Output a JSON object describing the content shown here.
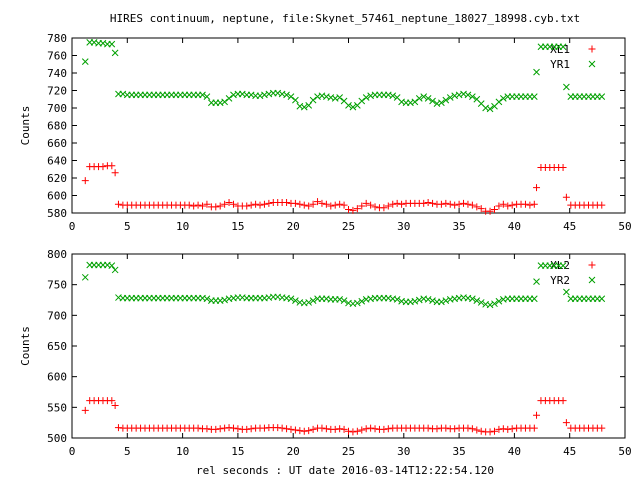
{
  "title": "HIRES continuum, neptune, file:Skynet_57461_neptune_18027_18998.cyb.txt",
  "xlabel": "rel seconds : UT date 2016-03-14T12:22:54.120",
  "colors": {
    "red": "#ff0000",
    "green": "#00a000"
  },
  "chart_data": [
    {
      "type": "scatter",
      "ylabel": "Counts",
      "xlim": [
        0,
        50
      ],
      "ylim": [
        580,
        780
      ],
      "xticks": [
        0,
        5,
        10,
        15,
        20,
        25,
        30,
        35,
        40,
        45,
        50
      ],
      "yticks": [
        580,
        600,
        620,
        640,
        660,
        680,
        700,
        720,
        740,
        760,
        780
      ],
      "legend_position": "top-right",
      "series": [
        {
          "name": "XL1",
          "marker": "plus",
          "color": "#ff0000",
          "x": [
            1.2,
            1.6,
            2.0,
            2.4,
            2.8,
            3.2,
            3.6,
            3.9,
            4.2,
            4.6,
            5.0,
            5.4,
            5.8,
            6.2,
            6.6,
            7.0,
            7.4,
            7.8,
            8.2,
            8.6,
            9.0,
            9.4,
            9.8,
            10.2,
            10.6,
            11.0,
            11.4,
            11.8,
            12.2,
            12.6,
            13.0,
            13.4,
            13.8,
            14.2,
            14.6,
            15.0,
            15.4,
            15.8,
            16.2,
            16.6,
            17.0,
            17.4,
            17.8,
            18.2,
            18.6,
            19.0,
            19.4,
            19.8,
            20.2,
            20.6,
            21.0,
            21.4,
            21.8,
            22.2,
            22.6,
            23.0,
            23.4,
            23.8,
            24.2,
            24.6,
            25.0,
            25.4,
            25.8,
            26.2,
            26.6,
            27.0,
            27.4,
            27.8,
            28.2,
            28.6,
            29.0,
            29.4,
            29.8,
            30.2,
            30.6,
            31.0,
            31.4,
            31.8,
            32.2,
            32.6,
            33.0,
            33.4,
            33.8,
            34.2,
            34.6,
            35.0,
            35.4,
            35.8,
            36.2,
            36.6,
            37.0,
            37.4,
            37.8,
            38.2,
            38.6,
            39.0,
            39.4,
            39.8,
            40.2,
            40.6,
            41.0,
            41.4,
            41.8,
            42.0,
            42.4,
            42.8,
            43.2,
            43.6,
            44.0,
            44.4,
            44.7,
            45.1,
            45.5,
            45.9,
            46.3,
            46.7,
            47.1,
            47.5,
            47.9
          ],
          "y": [
            617,
            633,
            633,
            633,
            633,
            634,
            634,
            626,
            590,
            589,
            589,
            589,
            589,
            589,
            589,
            589,
            589,
            589,
            589,
            589,
            589,
            589,
            589,
            589,
            589,
            588,
            589,
            588,
            590,
            587,
            587,
            588,
            590,
            592,
            590,
            588,
            588,
            588,
            589,
            590,
            589,
            590,
            591,
            592,
            592,
            592,
            592,
            591,
            591,
            590,
            589,
            588,
            590,
            593,
            591,
            590,
            588,
            589,
            590,
            589,
            584,
            583,
            585,
            588,
            591,
            589,
            587,
            586,
            586,
            588,
            590,
            591,
            590,
            591,
            591,
            591,
            591,
            591,
            592,
            591,
            590,
            590,
            591,
            590,
            589,
            590,
            591,
            590,
            589,
            587,
            585,
            582,
            582,
            584,
            588,
            590,
            588,
            589,
            590,
            590,
            590,
            589,
            590,
            609,
            632,
            632,
            632,
            632,
            632,
            632,
            598,
            589,
            589,
            589,
            589,
            589,
            589,
            589,
            589
          ]
        },
        {
          "name": "YR1",
          "marker": "cross",
          "color": "#00a000",
          "x": [
            1.2,
            1.6,
            2.0,
            2.4,
            2.8,
            3.2,
            3.6,
            3.9,
            4.2,
            4.6,
            5.0,
            5.4,
            5.8,
            6.2,
            6.6,
            7.0,
            7.4,
            7.8,
            8.2,
            8.6,
            9.0,
            9.4,
            9.8,
            10.2,
            10.6,
            11.0,
            11.4,
            11.8,
            12.2,
            12.6,
            13.0,
            13.4,
            13.8,
            14.2,
            14.6,
            15.0,
            15.4,
            15.8,
            16.2,
            16.6,
            17.0,
            17.4,
            17.8,
            18.2,
            18.6,
            19.0,
            19.4,
            19.8,
            20.2,
            20.6,
            21.0,
            21.4,
            21.8,
            22.2,
            22.6,
            23.0,
            23.4,
            23.8,
            24.2,
            24.6,
            25.0,
            25.4,
            25.8,
            26.2,
            26.6,
            27.0,
            27.4,
            27.8,
            28.2,
            28.6,
            29.0,
            29.4,
            29.8,
            30.2,
            30.6,
            31.0,
            31.4,
            31.8,
            32.2,
            32.6,
            33.0,
            33.4,
            33.8,
            34.2,
            34.6,
            35.0,
            35.4,
            35.8,
            36.2,
            36.6,
            37.0,
            37.4,
            37.8,
            38.2,
            38.6,
            39.0,
            39.4,
            39.8,
            40.2,
            40.6,
            41.0,
            41.4,
            41.8,
            42.0,
            42.4,
            42.8,
            43.2,
            43.6,
            44.0,
            44.4,
            44.7,
            45.1,
            45.5,
            45.9,
            46.3,
            46.7,
            47.1,
            47.5,
            47.9
          ],
          "y": [
            753,
            775,
            775,
            774,
            774,
            773,
            773,
            763,
            716,
            716,
            715,
            715,
            715,
            715,
            715,
            715,
            715,
            715,
            715,
            715,
            715,
            715,
            715,
            715,
            715,
            715,
            715,
            715,
            713,
            706,
            706,
            706,
            707,
            711,
            715,
            716,
            716,
            715,
            715,
            714,
            714,
            715,
            716,
            717,
            717,
            716,
            715,
            713,
            709,
            702,
            701,
            703,
            709,
            713,
            714,
            713,
            712,
            711,
            712,
            708,
            703,
            701,
            703,
            708,
            712,
            714,
            715,
            715,
            715,
            715,
            714,
            712,
            707,
            706,
            706,
            707,
            711,
            713,
            711,
            708,
            705,
            706,
            709,
            712,
            714,
            715,
            716,
            715,
            713,
            710,
            705,
            700,
            699,
            702,
            707,
            711,
            713,
            713,
            713,
            713,
            713,
            713,
            713,
            741,
            770,
            770,
            770,
            770,
            770,
            770,
            724,
            713,
            713,
            713,
            713,
            713,
            713,
            713,
            713
          ]
        }
      ]
    },
    {
      "type": "scatter",
      "ylabel": "Counts",
      "xlim": [
        0,
        50
      ],
      "ylim": [
        500,
        800
      ],
      "xticks": [
        0,
        5,
        10,
        15,
        20,
        25,
        30,
        35,
        40,
        45,
        50
      ],
      "yticks": [
        500,
        550,
        600,
        650,
        700,
        750,
        800
      ],
      "legend_position": "top-right",
      "series": [
        {
          "name": "XL2",
          "marker": "plus",
          "color": "#ff0000",
          "x": [
            1.2,
            1.6,
            2.0,
            2.4,
            2.8,
            3.2,
            3.6,
            3.9,
            4.2,
            4.6,
            5.0,
            5.4,
            5.8,
            6.2,
            6.6,
            7.0,
            7.4,
            7.8,
            8.2,
            8.6,
            9.0,
            9.4,
            9.8,
            10.2,
            10.6,
            11.0,
            11.4,
            11.8,
            12.2,
            12.6,
            13.0,
            13.4,
            13.8,
            14.2,
            14.6,
            15.0,
            15.4,
            15.8,
            16.2,
            16.6,
            17.0,
            17.4,
            17.8,
            18.2,
            18.6,
            19.0,
            19.4,
            19.8,
            20.2,
            20.6,
            21.0,
            21.4,
            21.8,
            22.2,
            22.6,
            23.0,
            23.4,
            23.8,
            24.2,
            24.6,
            25.0,
            25.4,
            25.8,
            26.2,
            26.6,
            27.0,
            27.4,
            27.8,
            28.2,
            28.6,
            29.0,
            29.4,
            29.8,
            30.2,
            30.6,
            31.0,
            31.4,
            31.8,
            32.2,
            32.6,
            33.0,
            33.4,
            33.8,
            34.2,
            34.6,
            35.0,
            35.4,
            35.8,
            36.2,
            36.6,
            37.0,
            37.4,
            37.8,
            38.2,
            38.6,
            39.0,
            39.4,
            39.8,
            40.2,
            40.6,
            41.0,
            41.4,
            41.8,
            42.0,
            42.4,
            42.8,
            43.2,
            43.6,
            44.0,
            44.4,
            44.7,
            45.1,
            45.5,
            45.9,
            46.3,
            46.7,
            47.1,
            47.5,
            47.9
          ],
          "y": [
            545,
            561,
            561,
            561,
            561,
            561,
            561,
            553,
            517,
            516,
            516,
            516,
            516,
            516,
            516,
            516,
            516,
            516,
            516,
            516,
            516,
            516,
            516,
            516,
            516,
            516,
            516,
            515,
            515,
            514,
            514,
            515,
            516,
            517,
            516,
            515,
            514,
            514,
            515,
            516,
            516,
            516,
            517,
            517,
            517,
            516,
            515,
            514,
            513,
            512,
            511,
            512,
            514,
            516,
            516,
            515,
            514,
            514,
            515,
            514,
            511,
            510,
            511,
            513,
            515,
            516,
            515,
            514,
            514,
            515,
            516,
            516,
            516,
            516,
            516,
            516,
            516,
            516,
            516,
            515,
            515,
            516,
            516,
            515,
            515,
            516,
            516,
            516,
            515,
            513,
            511,
            510,
            510,
            511,
            514,
            515,
            514,
            515,
            516,
            516,
            516,
            516,
            516,
            537,
            561,
            561,
            561,
            561,
            561,
            561,
            525,
            516,
            516,
            516,
            516,
            516,
            516,
            516,
            516
          ]
        },
        {
          "name": "YR2",
          "marker": "cross",
          "color": "#00a000",
          "x": [
            1.2,
            1.6,
            2.0,
            2.4,
            2.8,
            3.2,
            3.6,
            3.9,
            4.2,
            4.6,
            5.0,
            5.4,
            5.8,
            6.2,
            6.6,
            7.0,
            7.4,
            7.8,
            8.2,
            8.6,
            9.0,
            9.4,
            9.8,
            10.2,
            10.6,
            11.0,
            11.4,
            11.8,
            12.2,
            12.6,
            13.0,
            13.4,
            13.8,
            14.2,
            14.6,
            15.0,
            15.4,
            15.8,
            16.2,
            16.6,
            17.0,
            17.4,
            17.8,
            18.2,
            18.6,
            19.0,
            19.4,
            19.8,
            20.2,
            20.6,
            21.0,
            21.4,
            21.8,
            22.2,
            22.6,
            23.0,
            23.4,
            23.8,
            24.2,
            24.6,
            25.0,
            25.4,
            25.8,
            26.2,
            26.6,
            27.0,
            27.4,
            27.8,
            28.2,
            28.6,
            29.0,
            29.4,
            29.8,
            30.2,
            30.6,
            31.0,
            31.4,
            31.8,
            32.2,
            32.6,
            33.0,
            33.4,
            33.8,
            34.2,
            34.6,
            35.0,
            35.4,
            35.8,
            36.2,
            36.6,
            37.0,
            37.4,
            37.8,
            38.2,
            38.6,
            39.0,
            39.4,
            39.8,
            40.2,
            40.6,
            41.0,
            41.4,
            41.8,
            42.0,
            42.4,
            42.8,
            43.2,
            43.6,
            44.0,
            44.4,
            44.7,
            45.1,
            45.5,
            45.9,
            46.3,
            46.7,
            47.1,
            47.5,
            47.9
          ],
          "y": [
            762,
            782,
            782,
            782,
            782,
            782,
            781,
            774,
            729,
            728,
            728,
            728,
            728,
            728,
            728,
            728,
            728,
            728,
            728,
            728,
            728,
            728,
            728,
            728,
            728,
            728,
            728,
            728,
            727,
            724,
            724,
            724,
            725,
            727,
            728,
            729,
            729,
            728,
            728,
            728,
            728,
            728,
            729,
            730,
            730,
            729,
            728,
            727,
            724,
            721,
            720,
            721,
            724,
            727,
            727,
            727,
            726,
            726,
            726,
            724,
            720,
            719,
            720,
            723,
            726,
            727,
            728,
            728,
            728,
            728,
            727,
            726,
            723,
            722,
            722,
            723,
            725,
            727,
            726,
            724,
            722,
            722,
            724,
            726,
            727,
            728,
            729,
            728,
            727,
            724,
            721,
            718,
            717,
            719,
            723,
            726,
            727,
            727,
            727,
            727,
            727,
            727,
            727,
            755,
            781,
            781,
            781,
            781,
            781,
            781,
            738,
            727,
            727,
            727,
            727,
            727,
            727,
            727,
            727
          ]
        }
      ]
    }
  ]
}
